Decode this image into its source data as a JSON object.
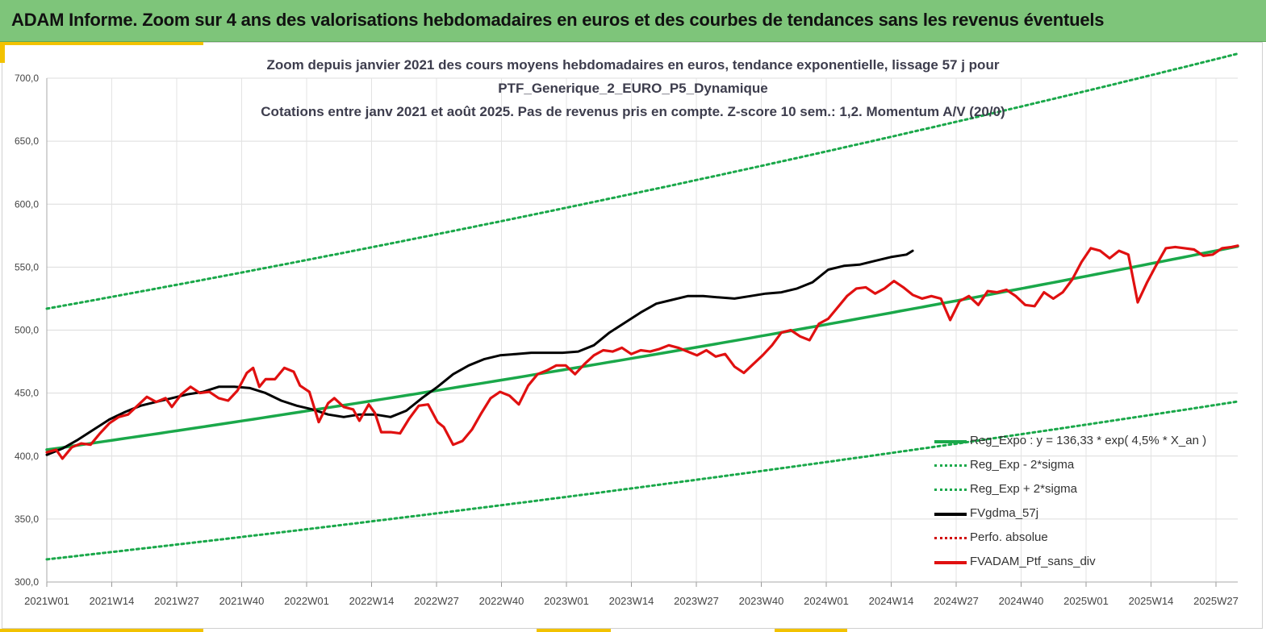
{
  "banner": {
    "title": "ADAM Informe. Zoom sur 4 ans des valorisations hebdomadaires en euros et des courbes de tendances sans les revenus éventuels"
  },
  "chart_data": {
    "type": "line",
    "title_lines": [
      "Zoom depuis janvier 2021 des cours moyens hebdomadaires  en euros, tendance exponentielle, lissage 57 j pour",
      "PTF_Generique_2_EURO_P5_Dynamique",
      "Cotations  entre janv 2021 et août 2025. Pas de revenus pris en compte. Z-score 10 sem.: 1,2. Momentum A/V (20/0)"
    ],
    "xlabel": "",
    "ylabel": "",
    "ylim": [
      300,
      700
    ],
    "y_ticks": [
      "700,0",
      "650,0",
      "600,0",
      "550,0",
      "500,0",
      "450,0",
      "400,0",
      "350,0",
      "300,0"
    ],
    "x_ticks": [
      "2021W01",
      "2021W14",
      "2021W27",
      "2021W40",
      "2022W01",
      "2022W14",
      "2022W27",
      "2022W40",
      "2023W01",
      "2023W14",
      "2023W27",
      "2023W40",
      "2024W01",
      "2024W14",
      "2024W27",
      "2024W40",
      "2025W01",
      "2025W14",
      "2025W27"
    ],
    "x_range_weeks": [
      0,
      237
    ],
    "grid": true,
    "legend_position": "bottom-right",
    "series": [
      {
        "name": "Reg_Expo : y = 136,33 * exp( 4,5% *  X_an )",
        "style": "solid",
        "color": "#1aa84a",
        "points": [
          [
            0,
            405
          ],
          [
            237,
            499
          ]
        ]
      },
      {
        "name": "Reg_Exp - 2*sigma",
        "style": "dotted",
        "color": "#1aa84a",
        "points": [
          [
            0,
            318
          ],
          [
            237,
            391
          ]
        ]
      },
      {
        "name": "Reg_Exp + 2*sigma",
        "style": "dotted",
        "color": "#1aa84a",
        "points": [
          [
            0,
            517
          ],
          [
            237,
            635
          ]
        ]
      },
      {
        "name": "FVgdma_57j",
        "style": "solid",
        "color": "#000000",
        "points": [
          [
            0,
            401
          ],
          [
            5,
            406
          ],
          [
            10,
            413
          ],
          [
            15,
            421
          ],
          [
            20,
            429
          ],
          [
            25,
            435
          ],
          [
            30,
            440
          ],
          [
            35,
            443
          ],
          [
            40,
            446
          ],
          [
            45,
            449
          ],
          [
            50,
            451
          ],
          [
            55,
            455
          ],
          [
            60,
            455
          ],
          [
            65,
            454
          ],
          [
            70,
            450
          ],
          [
            75,
            444
          ],
          [
            80,
            440
          ],
          [
            85,
            437
          ],
          [
            90,
            433
          ],
          [
            95,
            431
          ],
          [
            100,
            433
          ],
          [
            105,
            433
          ],
          [
            110,
            431
          ],
          [
            115,
            436
          ],
          [
            120,
            446
          ],
          [
            125,
            455
          ],
          [
            130,
            465
          ],
          [
            135,
            472
          ],
          [
            140,
            477
          ],
          [
            145,
            480
          ],
          [
            150,
            481
          ],
          [
            155,
            482
          ],
          [
            160,
            482
          ],
          [
            165,
            482
          ],
          [
            170,
            483
          ],
          [
            175,
            488
          ],
          [
            180,
            498
          ],
          [
            185,
            506
          ],
          [
            190,
            514
          ],
          [
            195,
            521
          ],
          [
            200,
            524
          ],
          [
            205,
            527
          ],
          [
            210,
            527
          ],
          [
            215,
            526
          ],
          [
            220,
            525
          ],
          [
            225,
            527
          ],
          [
            230,
            529
          ],
          [
            235,
            530
          ],
          [
            240,
            533
          ],
          [
            245,
            538
          ],
          [
            250,
            548
          ],
          [
            255,
            551
          ],
          [
            260,
            552
          ],
          [
            265,
            555
          ],
          [
            270,
            558
          ],
          [
            275,
            560
          ],
          [
            277,
            563
          ]
        ]
      },
      {
        "name": "Perfo. absolue",
        "style": "dotted",
        "color": "#d00000",
        "points": []
      },
      {
        "name": "FVADAM_Ptf_sans_div",
        "style": "solid",
        "color": "#e01010",
        "points": [
          [
            0,
            403
          ],
          [
            3,
            405
          ],
          [
            5,
            398
          ],
          [
            8,
            407
          ],
          [
            11,
            410
          ],
          [
            14,
            409
          ],
          [
            17,
            418
          ],
          [
            20,
            426
          ],
          [
            23,
            431
          ],
          [
            26,
            433
          ],
          [
            29,
            440
          ],
          [
            32,
            447
          ],
          [
            35,
            443
          ],
          [
            38,
            446
          ],
          [
            40,
            439
          ],
          [
            43,
            449
          ],
          [
            46,
            455
          ],
          [
            49,
            450
          ],
          [
            52,
            451
          ],
          [
            55,
            446
          ],
          [
            58,
            444
          ],
          [
            61,
            452
          ],
          [
            64,
            466
          ],
          [
            66,
            470
          ],
          [
            68,
            455
          ],
          [
            70,
            461
          ],
          [
            73,
            461
          ],
          [
            76,
            470
          ],
          [
            79,
            467
          ],
          [
            81,
            456
          ],
          [
            84,
            451
          ],
          [
            87,
            427
          ],
          [
            90,
            442
          ],
          [
            92,
            446
          ],
          [
            95,
            439
          ],
          [
            98,
            437
          ],
          [
            100,
            428
          ],
          [
            103,
            441
          ],
          [
            105,
            434
          ],
          [
            107,
            419
          ],
          [
            110,
            419
          ],
          [
            113,
            418
          ],
          [
            116,
            430
          ],
          [
            119,
            440
          ],
          [
            122,
            441
          ],
          [
            125,
            427
          ],
          [
            127,
            423
          ],
          [
            130,
            409
          ],
          [
            133,
            412
          ],
          [
            136,
            421
          ],
          [
            139,
            434
          ],
          [
            142,
            446
          ],
          [
            145,
            451
          ],
          [
            148,
            448
          ],
          [
            151,
            441
          ],
          [
            154,
            456
          ],
          [
            157,
            465
          ],
          [
            160,
            468
          ],
          [
            163,
            472
          ],
          [
            166,
            472
          ],
          [
            169,
            465
          ],
          [
            172,
            473
          ],
          [
            175,
            480
          ],
          [
            178,
            484
          ],
          [
            181,
            483
          ],
          [
            184,
            486
          ],
          [
            187,
            481
          ],
          [
            190,
            484
          ],
          [
            193,
            483
          ],
          [
            196,
            485
          ],
          [
            199,
            488
          ],
          [
            202,
            486
          ],
          [
            205,
            483
          ],
          [
            208,
            480
          ],
          [
            211,
            484
          ],
          [
            214,
            479
          ],
          [
            217,
            481
          ],
          [
            220,
            471
          ],
          [
            223,
            466
          ],
          [
            226,
            473
          ],
          [
            229,
            480
          ],
          [
            232,
            488
          ],
          [
            235,
            498
          ],
          [
            238,
            500
          ],
          [
            241,
            495
          ],
          [
            244,
            492
          ],
          [
            247,
            505
          ],
          [
            250,
            509
          ],
          [
            253,
            518
          ],
          [
            256,
            527
          ],
          [
            259,
            533
          ],
          [
            262,
            534
          ],
          [
            265,
            529
          ],
          [
            268,
            533
          ],
          [
            271,
            539
          ],
          [
            274,
            534
          ],
          [
            277,
            528
          ],
          [
            280,
            525
          ],
          [
            283,
            527
          ],
          [
            286,
            525
          ],
          [
            289,
            508
          ],
          [
            292,
            523
          ],
          [
            295,
            527
          ],
          [
            298,
            520
          ],
          [
            301,
            531
          ],
          [
            304,
            530
          ],
          [
            307,
            532
          ],
          [
            310,
            527
          ],
          [
            313,
            520
          ],
          [
            316,
            519
          ],
          [
            319,
            530
          ],
          [
            322,
            525
          ],
          [
            325,
            530
          ],
          [
            328,
            540
          ],
          [
            331,
            554
          ],
          [
            334,
            565
          ],
          [
            337,
            563
          ],
          [
            340,
            557
          ],
          [
            343,
            563
          ],
          [
            346,
            560
          ],
          [
            349,
            522
          ],
          [
            352,
            538
          ],
          [
            355,
            552
          ],
          [
            358,
            565
          ],
          [
            361,
            566
          ],
          [
            364,
            565
          ],
          [
            367,
            564
          ],
          [
            370,
            559
          ],
          [
            373,
            560
          ],
          [
            376,
            565
          ],
          [
            379,
            566
          ],
          [
            381,
            567
          ]
        ]
      }
    ]
  }
}
